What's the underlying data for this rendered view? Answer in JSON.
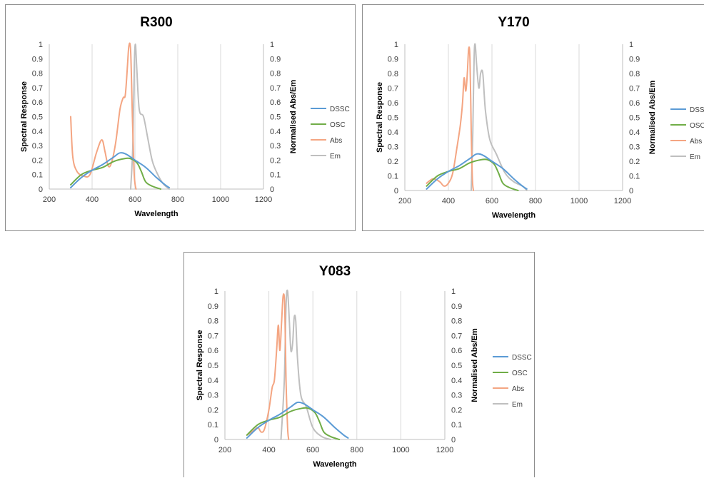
{
  "chart_data": [
    {
      "type": "line",
      "title": "R300",
      "xlabel": "Wavelength",
      "ylabel": "Spectral Response",
      "y2label": "Normalised Abs/Em",
      "xlim": [
        200,
        1200
      ],
      "xticks": [
        "200",
        "400",
        "600",
        "800",
        "1000",
        "1200"
      ],
      "ylim": [
        0,
        1
      ],
      "yticks": [
        "0",
        "0.1",
        "0.2",
        "0.3",
        "0.4",
        "0.5",
        "0.6",
        "0.7",
        "0.8",
        "0.9",
        "1"
      ],
      "y2lim": [
        0,
        1
      ],
      "y2ticks": [
        "0",
        "0.1",
        "0.2",
        "0.3",
        "0.4",
        "0.5",
        "0.6",
        "0.7",
        "0.8",
        "0.9",
        "1"
      ],
      "grid": "vertical",
      "legend": "right",
      "series": [
        {
          "name": "DSSC",
          "color": "#5b9bd5",
          "axis": "left",
          "x": [
            300,
            350,
            400,
            450,
            500,
            530,
            560,
            600,
            650,
            700,
            740,
            760
          ],
          "y": [
            0.01,
            0.08,
            0.13,
            0.17,
            0.22,
            0.25,
            0.24,
            0.2,
            0.15,
            0.08,
            0.03,
            0.01
          ]
        },
        {
          "name": "OSC",
          "color": "#70ad47",
          "axis": "left",
          "x": [
            300,
            350,
            400,
            450,
            500,
            550,
            580,
            610,
            630,
            650,
            680,
            720
          ],
          "y": [
            0.03,
            0.1,
            0.13,
            0.15,
            0.19,
            0.21,
            0.21,
            0.18,
            0.12,
            0.05,
            0.02,
            0.0
          ]
        },
        {
          "name": "Abs",
          "color": "#f4a582",
          "axis": "right",
          "x": [
            300,
            310,
            330,
            360,
            390,
            420,
            445,
            460,
            475,
            490,
            510,
            530,
            545,
            555,
            565,
            572,
            580,
            588,
            595,
            600,
            605
          ],
          "y": [
            0.5,
            0.22,
            0.12,
            0.09,
            0.1,
            0.25,
            0.34,
            0.26,
            0.16,
            0.18,
            0.32,
            0.55,
            0.63,
            0.65,
            0.85,
            0.99,
            0.95,
            0.5,
            0.15,
            0.04,
            0.0
          ]
        },
        {
          "name": "Em",
          "color": "#bfbfbf",
          "axis": "right",
          "x": [
            580,
            590,
            597,
            602,
            608,
            620,
            640,
            660,
            680,
            700,
            730,
            760
          ],
          "y": [
            0.0,
            0.3,
            0.85,
            1.0,
            0.85,
            0.55,
            0.5,
            0.35,
            0.2,
            0.12,
            0.04,
            0.0
          ]
        }
      ]
    },
    {
      "type": "line",
      "title": "Y170",
      "xlabel": "Wavelength",
      "ylabel": "Spectral Response",
      "y2label": "Normalised Abs/Em",
      "xlim": [
        200,
        1200
      ],
      "xticks": [
        "200",
        "400",
        "600",
        "800",
        "1000",
        "1200"
      ],
      "ylim": [
        0,
        1
      ],
      "yticks": [
        "0",
        "0.1",
        "0.2",
        "0.3",
        "0.4",
        "0.5",
        "0.6",
        "0.7",
        "0.8",
        "0.9",
        "1"
      ],
      "y2lim": [
        0,
        1
      ],
      "y2ticks": [
        "0",
        "0.1",
        "0.2",
        "0.3",
        "0.4",
        "0.5",
        "0.6",
        "0.7",
        "0.8",
        "0.9",
        "1"
      ],
      "grid": "vertical",
      "legend": "right",
      "series": [
        {
          "name": "DSSC",
          "color": "#5b9bd5",
          "axis": "left",
          "x": [
            300,
            350,
            400,
            450,
            500,
            530,
            560,
            600,
            650,
            700,
            740,
            760
          ],
          "y": [
            0.01,
            0.08,
            0.13,
            0.17,
            0.22,
            0.25,
            0.24,
            0.2,
            0.15,
            0.08,
            0.03,
            0.01
          ]
        },
        {
          "name": "OSC",
          "color": "#70ad47",
          "axis": "left",
          "x": [
            300,
            350,
            400,
            450,
            500,
            550,
            580,
            610,
            630,
            650,
            680,
            720
          ],
          "y": [
            0.03,
            0.1,
            0.13,
            0.15,
            0.19,
            0.21,
            0.21,
            0.18,
            0.12,
            0.05,
            0.02,
            0.0
          ]
        },
        {
          "name": "Abs",
          "color": "#f4a582",
          "axis": "right",
          "x": [
            300,
            330,
            360,
            380,
            400,
            420,
            440,
            455,
            465,
            472,
            480,
            487,
            493,
            499,
            505,
            510,
            515
          ],
          "y": [
            0.05,
            0.08,
            0.06,
            0.03,
            0.05,
            0.12,
            0.3,
            0.45,
            0.6,
            0.77,
            0.68,
            0.8,
            0.97,
            0.9,
            0.4,
            0.08,
            0.0
          ]
        },
        {
          "name": "Em",
          "color": "#bfbfbf",
          "axis": "right",
          "x": [
            505,
            512,
            518,
            523,
            530,
            540,
            548,
            558,
            570,
            590,
            620,
            660,
            700,
            740,
            760
          ],
          "y": [
            0.0,
            0.4,
            0.9,
            1.0,
            0.85,
            0.7,
            0.8,
            0.8,
            0.55,
            0.35,
            0.25,
            0.12,
            0.06,
            0.03,
            0.0
          ]
        }
      ]
    },
    {
      "type": "line",
      "title": "Y083",
      "xlabel": "Wavelength",
      "ylabel": "Spectral Response",
      "y2label": "Normalised Abs/Em",
      "xlim": [
        200,
        1200
      ],
      "xticks": [
        "200",
        "400",
        "600",
        "800",
        "1000",
        "1200"
      ],
      "ylim": [
        0,
        1
      ],
      "yticks": [
        "0",
        "0.1",
        "0.2",
        "0.3",
        "0.4",
        "0.5",
        "0.6",
        "0.7",
        "0.8",
        "0.9",
        "1"
      ],
      "y2lim": [
        0,
        1
      ],
      "y2ticks": [
        "0",
        "0.1",
        "0.2",
        "0.3",
        "0.4",
        "0.5",
        "0.6",
        "0.7",
        "0.8",
        "0.9",
        "1"
      ],
      "grid": "vertical",
      "legend": "right",
      "series": [
        {
          "name": "DSSC",
          "color": "#5b9bd5",
          "axis": "left",
          "x": [
            300,
            350,
            400,
            450,
            500,
            530,
            560,
            600,
            650,
            700,
            740,
            760
          ],
          "y": [
            0.01,
            0.08,
            0.13,
            0.17,
            0.22,
            0.25,
            0.24,
            0.2,
            0.15,
            0.08,
            0.03,
            0.01
          ]
        },
        {
          "name": "OSC",
          "color": "#70ad47",
          "axis": "left",
          "x": [
            300,
            350,
            400,
            450,
            500,
            550,
            580,
            610,
            630,
            650,
            680,
            720
          ],
          "y": [
            0.03,
            0.1,
            0.13,
            0.15,
            0.19,
            0.21,
            0.21,
            0.18,
            0.12,
            0.05,
            0.02,
            0.0
          ]
        },
        {
          "name": "Abs",
          "color": "#f4a582",
          "axis": "right",
          "x": [
            300,
            330,
            350,
            365,
            380,
            400,
            415,
            425,
            435,
            443,
            450,
            458,
            465,
            472,
            478,
            485,
            490
          ],
          "y": [
            0.03,
            0.06,
            0.08,
            0.05,
            0.07,
            0.2,
            0.35,
            0.4,
            0.6,
            0.77,
            0.6,
            0.8,
            0.97,
            0.9,
            0.4,
            0.08,
            0.0
          ]
        },
        {
          "name": "Em",
          "color": "#bfbfbf",
          "axis": "right",
          "x": [
            455,
            470,
            478,
            485,
            493,
            500,
            508,
            515,
            522,
            530,
            545,
            570,
            600,
            640,
            680
          ],
          "y": [
            0.0,
            0.4,
            0.9,
            1.0,
            0.8,
            0.6,
            0.65,
            0.82,
            0.8,
            0.55,
            0.3,
            0.22,
            0.08,
            0.02,
            0.0
          ]
        }
      ]
    }
  ]
}
